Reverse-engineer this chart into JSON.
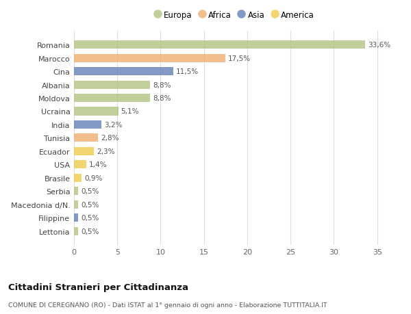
{
  "countries": [
    "Romania",
    "Marocco",
    "Cina",
    "Albania",
    "Moldova",
    "Ucraina",
    "India",
    "Tunisia",
    "Ecuador",
    "USA",
    "Brasile",
    "Serbia",
    "Macedonia d/N.",
    "Filippine",
    "Lettonia"
  ],
  "values": [
    33.6,
    17.5,
    11.5,
    8.8,
    8.8,
    5.1,
    3.2,
    2.8,
    2.3,
    1.4,
    0.9,
    0.5,
    0.5,
    0.5,
    0.5
  ],
  "labels": [
    "33,6%",
    "17,5%",
    "11,5%",
    "8,8%",
    "8,8%",
    "5,1%",
    "3,2%",
    "2,8%",
    "2,3%",
    "1,4%",
    "0,9%",
    "0,5%",
    "0,5%",
    "0,5%",
    "0,5%"
  ],
  "continents": [
    "Europa",
    "Africa",
    "Asia",
    "Europa",
    "Europa",
    "Europa",
    "Asia",
    "Africa",
    "America",
    "America",
    "America",
    "Europa",
    "Europa",
    "Asia",
    "Europa"
  ],
  "colors": {
    "Europa": "#adc178",
    "Africa": "#f0a868",
    "Asia": "#5878b0",
    "America": "#f0c840"
  },
  "bar_alpha": 0.75,
  "background_color": "#ffffff",
  "grid_color": "#dddddd",
  "title": "Cittadini Stranieri per Cittadinanza",
  "subtitle": "COMUNE DI CEREGNANO (RO) - Dati ISTAT al 1° gennaio di ogni anno - Elaborazione TUTTITALIA.IT",
  "xlim": [
    0,
    37
  ],
  "xticks": [
    0,
    5,
    10,
    15,
    20,
    25,
    30,
    35
  ],
  "legend_order": [
    "Europa",
    "Africa",
    "Asia",
    "America"
  ]
}
